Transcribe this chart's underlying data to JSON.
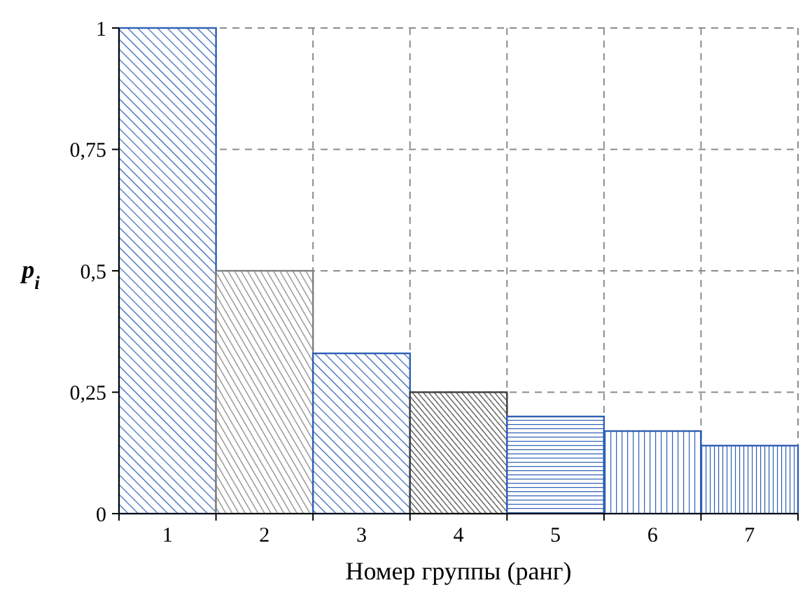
{
  "chart_data": {
    "type": "bar",
    "xlabel": "Номер группы (ранг)",
    "ylabel": "p$_{i}$",
    "categories": [
      "1",
      "2",
      "3",
      "4",
      "5",
      "6",
      "7"
    ],
    "values": [
      1,
      0.5,
      0.33,
      0.25,
      0.2,
      0.17,
      0.14
    ],
    "colors": [
      "#2e5fb5",
      "#808080",
      "#2e5fb5",
      "#404040",
      "#2e5fb5",
      "#2e5fb5",
      "#2e5fb5"
    ],
    "ylim": [
      0,
      1
    ],
    "yticks": [
      {
        "value": 0,
        "label": "0"
      },
      {
        "value": 0.25,
        "label": "0,25"
      },
      {
        "value": 0.5,
        "label": "0,5"
      },
      {
        "value": 0.75,
        "label": "0,75"
      },
      {
        "value": 1,
        "label": "1"
      }
    ],
    "grid": true
  }
}
